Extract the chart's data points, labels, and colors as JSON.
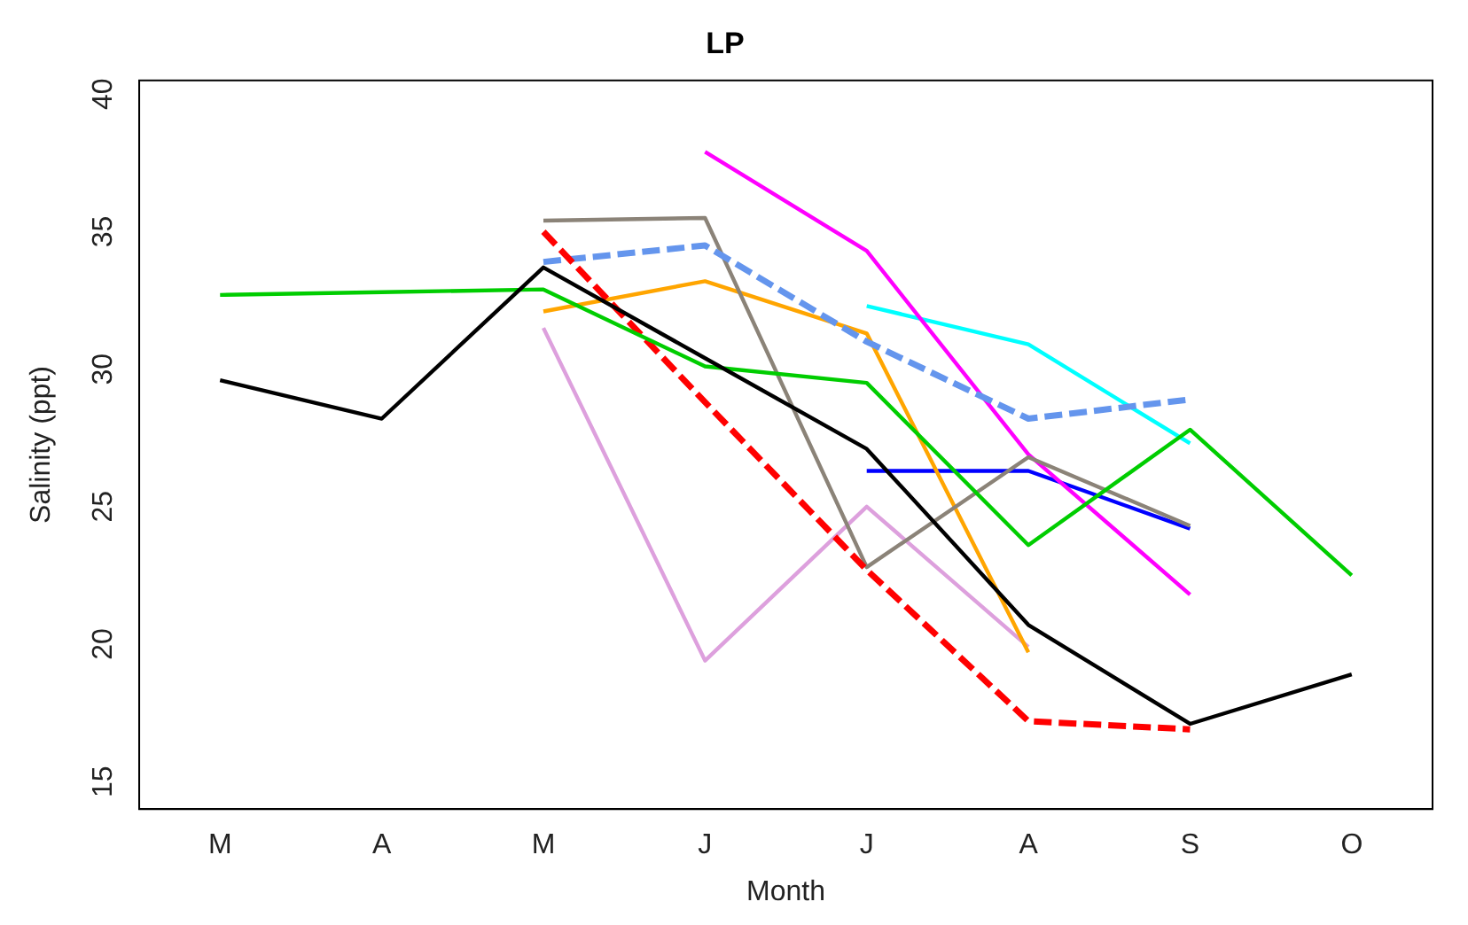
{
  "chart_data": {
    "type": "line",
    "title": "LP",
    "xlabel": "Month",
    "ylabel": "Salinity (ppt)",
    "categories": [
      "M",
      "A",
      "M",
      "J",
      "J",
      "A",
      "S",
      "O"
    ],
    "ylim": [
      14,
      40.5
    ],
    "yticks": [
      15,
      20,
      25,
      30,
      35,
      40
    ],
    "grid": false,
    "legend": false,
    "marker": "none",
    "series": [
      {
        "color": "#000000",
        "values": [
          29.6,
          28.2,
          33.7,
          30.4,
          27.1,
          20.7,
          17.1,
          18.9
        ]
      },
      {
        "color": "#00cd00",
        "values": [
          32.7,
          32.8,
          32.9,
          30.1,
          29.5,
          23.6,
          27.8,
          22.5
        ]
      },
      {
        "color": "#ff0000",
        "line_style": "dashed",
        "values": [
          null,
          null,
          35.0,
          28.8,
          22.7,
          17.2,
          16.9,
          null
        ]
      },
      {
        "color": "#6495ed",
        "line_style": "dashed",
        "values": [
          null,
          null,
          33.9,
          34.5,
          31.0,
          28.2,
          28.9,
          null
        ]
      },
      {
        "color": "#8b8378",
        "values": [
          null,
          null,
          35.4,
          35.5,
          22.8,
          26.8,
          24.3,
          null
        ]
      },
      {
        "color": "#ffa500",
        "values": [
          null,
          null,
          32.1,
          33.2,
          31.3,
          19.7,
          null,
          null
        ]
      },
      {
        "color": "#dda0dd",
        "values": [
          null,
          null,
          31.5,
          19.4,
          25.0,
          19.9,
          null,
          null
        ]
      },
      {
        "color": "#ff00ff",
        "values": [
          null,
          null,
          null,
          37.9,
          34.3,
          26.9,
          21.8,
          null
        ]
      },
      {
        "color": "#00ffff",
        "values": [
          null,
          null,
          null,
          null,
          32.3,
          30.9,
          27.3,
          null
        ]
      },
      {
        "color": "#0000ff",
        "values": [
          null,
          null,
          null,
          null,
          26.3,
          26.3,
          24.2,
          null
        ]
      }
    ]
  }
}
